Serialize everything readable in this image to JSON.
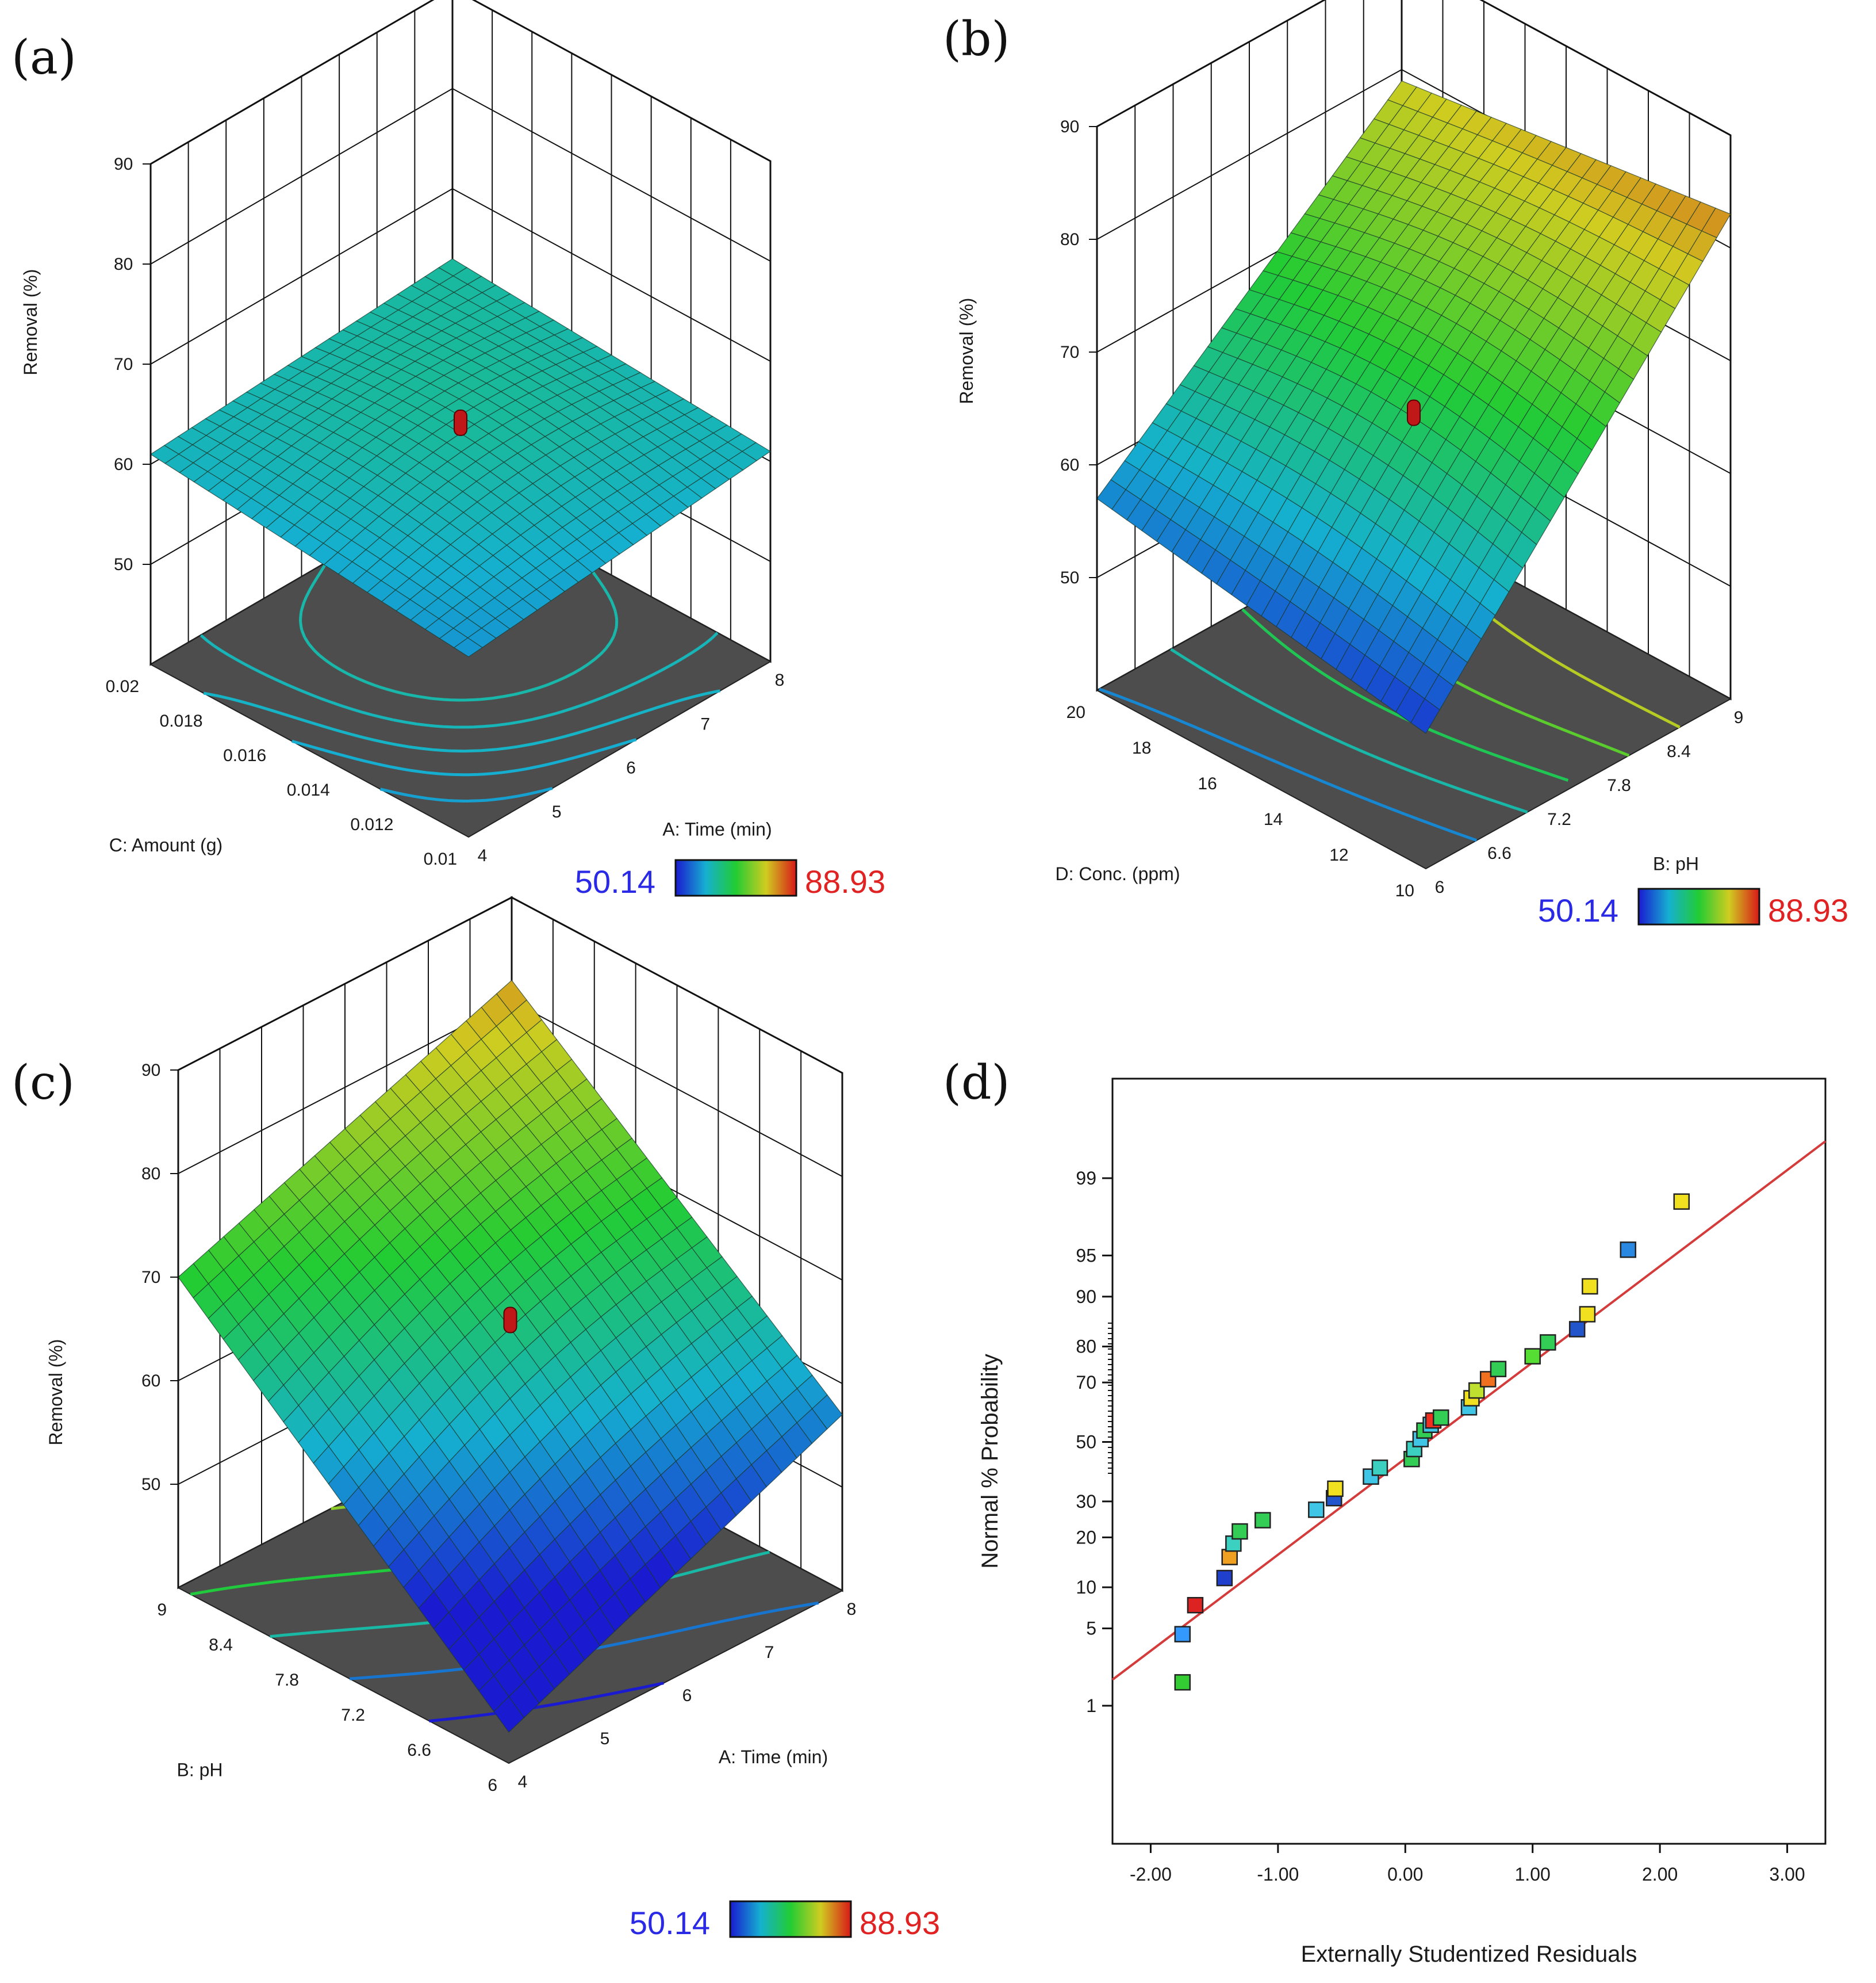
{
  "panels": {
    "a": "(a)",
    "b": "(b)",
    "c": "(c)",
    "d": "(d)"
  },
  "colors": {
    "floor": "#4d4d4d",
    "grid": "#111111",
    "mesh": "#1c3a2c",
    "fit_line": "#d43b3b",
    "marker_border": "#222222"
  },
  "chart_data": [
    {
      "id": "a",
      "type": "surface3d",
      "zlabel": "Removal (%)",
      "xlabel": "A: Time (min)",
      "ylabel": "C: Amount (g)",
      "x_ticks": [
        "4",
        "5",
        "6",
        "7",
        "8"
      ],
      "y_ticks": [
        "0.01",
        "0.012",
        "0.014",
        "0.016",
        "0.018",
        "0.02"
      ],
      "z_ticks": [
        "50",
        "60",
        "70",
        "80",
        "90"
      ],
      "x_range": [
        4,
        8
      ],
      "y_range": [
        0.01,
        0.02
      ],
      "z_range": [
        40,
        90
      ],
      "corner_values": {
        "x_low_y_low": 58,
        "x_high_y_low": 61,
        "x_low_y_high": 61,
        "x_high_y_high": 63
      },
      "design_point": {
        "x": 6,
        "y": 0.015,
        "z": 64
      },
      "legend": {
        "min": "50.14",
        "max": "88.93"
      }
    },
    {
      "id": "b",
      "type": "surface3d",
      "zlabel": "Removal (%)",
      "xlabel": "B: pH",
      "ylabel": "D: Conc. (ppm)",
      "x_ticks": [
        "6",
        "6.6",
        "7.2",
        "7.8",
        "8.4",
        "9"
      ],
      "y_ticks": [
        "10",
        "12",
        "14",
        "16",
        "18",
        "20"
      ],
      "z_ticks": [
        "50",
        "60",
        "70",
        "80",
        "90"
      ],
      "x_range": [
        6,
        9
      ],
      "y_range": [
        10,
        20
      ],
      "z_range": [
        40,
        90
      ],
      "corner_values": {
        "x_low_y_low": 52,
        "x_high_y_low": 83,
        "x_low_y_high": 57,
        "x_high_y_high": 79
      },
      "design_point": {
        "x": 7.5,
        "y": 15,
        "z": 65
      },
      "legend": {
        "min": "50.14",
        "max": "88.93"
      }
    },
    {
      "id": "c",
      "type": "surface3d",
      "zlabel": "Removal (%)",
      "xlabel": "A: Time (min)",
      "ylabel": "B: pH",
      "x_ticks": [
        "4",
        "5",
        "6",
        "7",
        "8"
      ],
      "y_ticks": [
        "6",
        "6.6",
        "7.2",
        "7.8",
        "8.4",
        "9"
      ],
      "z_ticks": [
        "50",
        "60",
        "70",
        "80",
        "90"
      ],
      "x_range": [
        4,
        8
      ],
      "y_range": [
        6,
        9
      ],
      "z_range": [
        40,
        90
      ],
      "corner_values": {
        "x_low_y_low": 43,
        "x_high_y_low": 57,
        "x_low_y_high": 70,
        "x_high_y_high": 82
      },
      "design_point": {
        "x": 6,
        "y": 7.5,
        "z": 66
      },
      "legend": {
        "min": "50.14",
        "max": "88.93"
      }
    },
    {
      "id": "d",
      "type": "scatter",
      "xlabel": "Externally Studentized Residuals",
      "ylabel": "Normal % Probability",
      "x_ticks": [
        "-2.00",
        "-1.00",
        "0.00",
        "1.00",
        "2.00",
        "3.00"
      ],
      "y_ticks": [
        "1",
        "5",
        "10",
        "20",
        "30",
        "50",
        "70",
        "80",
        "90",
        "95",
        "99"
      ],
      "x_range": [
        -2.3,
        3.3
      ],
      "fit_line": [
        [
          -2.3,
          1.8
        ],
        [
          3.3,
          99.6
        ]
      ],
      "points": [
        {
          "x": -1.75,
          "p": 1.7,
          "c": "#33cc33"
        },
        {
          "x": -1.75,
          "p": 4.5,
          "c": "#3399ff"
        },
        {
          "x": -1.65,
          "p": 7.5,
          "c": "#dd2222"
        },
        {
          "x": -1.42,
          "p": 11.5,
          "c": "#1f3fcc"
        },
        {
          "x": -1.38,
          "p": 15.5,
          "c": "#f0a020"
        },
        {
          "x": -1.35,
          "p": 18.5,
          "c": "#3cd0c0"
        },
        {
          "x": -1.3,
          "p": 21.5,
          "c": "#33cc55"
        },
        {
          "x": -1.12,
          "p": 24.5,
          "c": "#33cc55"
        },
        {
          "x": -0.7,
          "p": 27.5,
          "c": "#3fc6e6"
        },
        {
          "x": -0.56,
          "p": 31.0,
          "c": "#2255cc"
        },
        {
          "x": -0.55,
          "p": 34.0,
          "c": "#f0e020"
        },
        {
          "x": -0.27,
          "p": 38.0,
          "c": "#3fc6e6"
        },
        {
          "x": -0.2,
          "p": 41.0,
          "c": "#3cd0c0"
        },
        {
          "x": 0.05,
          "p": 44.0,
          "c": "#33cc55"
        },
        {
          "x": 0.07,
          "p": 47.5,
          "c": "#3cd0c0"
        },
        {
          "x": 0.12,
          "p": 51.0,
          "c": "#3fc6e6"
        },
        {
          "x": 0.15,
          "p": 54.0,
          "c": "#33cc55"
        },
        {
          "x": 0.2,
          "p": 56.0,
          "c": "#3fc6e6"
        },
        {
          "x": 0.22,
          "p": 57.5,
          "c": "#f03020"
        },
        {
          "x": 0.28,
          "p": 58.5,
          "c": "#33cc55"
        },
        {
          "x": 0.5,
          "p": 62.0,
          "c": "#3fc6e6"
        },
        {
          "x": 0.52,
          "p": 65.0,
          "c": "#f0e020"
        },
        {
          "x": 0.56,
          "p": 67.5,
          "c": "#c0e030"
        },
        {
          "x": 0.65,
          "p": 71.0,
          "c": "#f07020"
        },
        {
          "x": 0.73,
          "p": 74.0,
          "c": "#33cc55"
        },
        {
          "x": 1.0,
          "p": 77.5,
          "c": "#55dd33"
        },
        {
          "x": 1.12,
          "p": 81.0,
          "c": "#33cc55"
        },
        {
          "x": 1.35,
          "p": 84.0,
          "c": "#2255cc"
        },
        {
          "x": 1.43,
          "p": 87.0,
          "c": "#f0e020"
        },
        {
          "x": 1.45,
          "p": 91.5,
          "c": "#f0e020"
        },
        {
          "x": 1.75,
          "p": 95.5,
          "c": "#2a88e0"
        },
        {
          "x": 2.17,
          "p": 98.3,
          "c": "#f0e020"
        }
      ]
    }
  ]
}
